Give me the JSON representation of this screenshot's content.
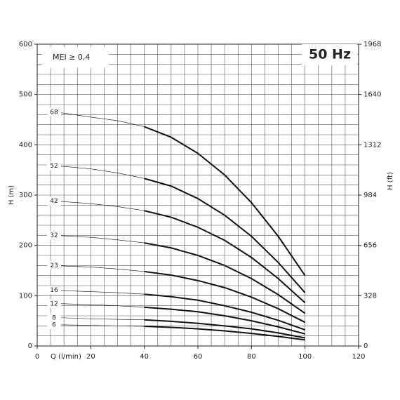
{
  "chart_data": {
    "type": "line",
    "x_label": "Q (l/min)",
    "y_label": "H (m)",
    "y2_label": "H (ft)",
    "annotations": [
      "MEI ≥ 0,4",
      "50 Hz"
    ],
    "x": [
      5,
      10,
      20,
      30,
      40,
      50,
      60,
      70,
      80,
      90,
      100
    ],
    "operating_range": [
      40,
      100
    ],
    "series": [
      {
        "name": "68",
        "color": "#111111",
        "values": [
          465,
          463,
          455,
          448,
          436,
          415,
          383,
          340,
          285,
          218,
          140
        ]
      },
      {
        "name": "52",
        "color": "#111111",
        "values": [
          358,
          357,
          352,
          344,
          333,
          318,
          293,
          260,
          218,
          166,
          106
        ]
      },
      {
        "name": "42",
        "color": "#111111",
        "values": [
          288,
          287,
          283,
          277,
          269,
          256,
          236,
          210,
          176,
          134,
          86
        ]
      },
      {
        "name": "32",
        "color": "#111111",
        "values": [
          220,
          219,
          216,
          211,
          205,
          195,
          180,
          160,
          134,
          102,
          65
        ]
      },
      {
        "name": "23",
        "color": "#111111",
        "values": [
          160,
          159,
          157,
          153,
          148,
          141,
          130,
          116,
          97,
          74,
          47
        ]
      },
      {
        "name": "16",
        "color": "#111111",
        "values": [
          111,
          110,
          108,
          106,
          103,
          98,
          91,
          80,
          67,
          51,
          32
        ]
      },
      {
        "name": "12",
        "color": "#111111",
        "values": [
          84,
          84,
          82,
          80,
          77,
          73,
          68,
          60,
          50,
          38,
          24
        ]
      },
      {
        "name": "8",
        "color": "#111111",
        "values": [
          56,
          56,
          54,
          53,
          52,
          49,
          45,
          40,
          34,
          26,
          16
        ]
      },
      {
        "name": "6",
        "color": "#111111",
        "values": [
          42,
          42,
          41,
          40,
          39,
          37,
          34,
          30,
          25,
          19,
          12
        ]
      }
    ],
    "xlim": [
      0,
      120
    ],
    "xticks": [
      0,
      20,
      40,
      60,
      80,
      100,
      120
    ],
    "ylim": [
      0,
      600
    ],
    "yticks": [
      0,
      100,
      200,
      300,
      400,
      500,
      600
    ],
    "y2lim": [
      0,
      1968
    ],
    "y2ticks": [
      0,
      328,
      656,
      984,
      1312,
      1640,
      1968
    ],
    "minor_xticks": [
      5,
      10,
      15,
      25,
      30,
      35,
      45,
      50,
      55,
      65,
      70,
      75,
      85,
      90,
      95,
      105,
      110,
      115
    ],
    "minor_yticks": [
      20,
      40,
      60,
      80,
      120,
      140,
      160,
      180,
      220,
      240,
      260,
      280,
      320,
      340,
      360,
      380,
      420,
      440,
      460,
      480,
      520,
      540,
      560,
      580
    ],
    "grid": true
  }
}
